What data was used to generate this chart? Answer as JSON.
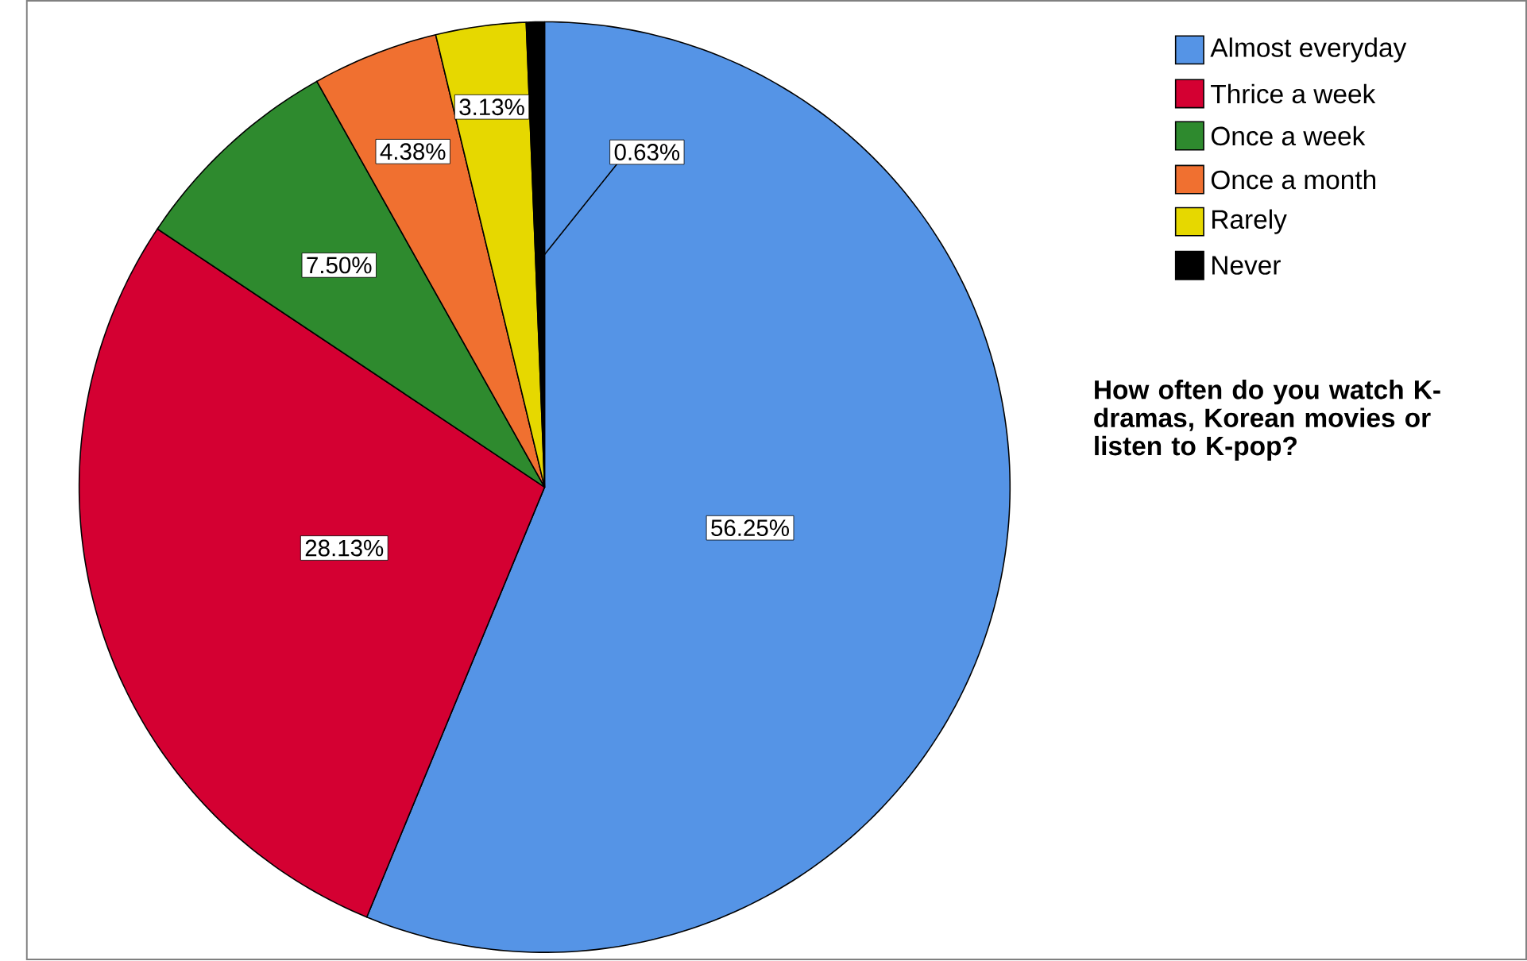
{
  "chart_data": {
    "type": "pie",
    "categories": [
      "Almost everyday",
      "Thrice a week",
      "Once a week",
      "Once a month",
      "Rarely",
      "Never"
    ],
    "values": [
      56.25,
      28.13,
      7.5,
      4.38,
      3.13,
      0.63
    ],
    "value_labels": [
      "56.25%",
      "28.13%",
      "7.50%",
      "4.38%",
      "3.13%",
      "0.63%"
    ],
    "colors": [
      "#5594e6",
      "#d40032",
      "#2e8a2e",
      "#f07030",
      "#e6d800",
      "#000000"
    ],
    "legend": "top right",
    "legend_title": "How often do you watch K-dramas, Korean movies or listen to K-pop?"
  }
}
